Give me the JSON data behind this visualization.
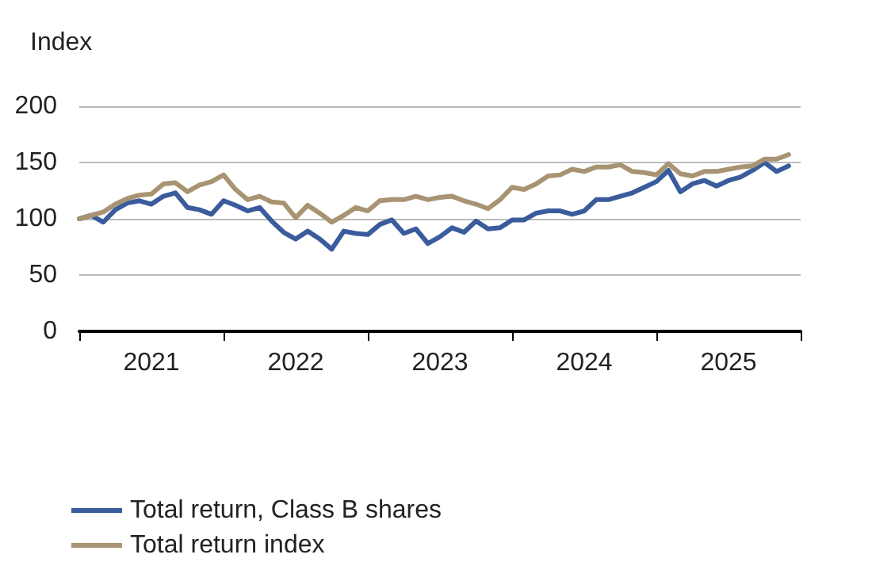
{
  "chart_data": {
    "type": "line",
    "ylabel": "Index",
    "x": [
      2021,
      2021.0833,
      2021.1667,
      2021.25,
      2021.3333,
      2021.4167,
      2021.5,
      2021.5833,
      2021.6667,
      2021.75,
      2021.8333,
      2021.9167,
      2022,
      2022.0833,
      2022.1667,
      2022.25,
      2022.3333,
      2022.4167,
      2022.5,
      2022.5833,
      2022.6667,
      2022.75,
      2022.8333,
      2022.9167,
      2023,
      2023.0833,
      2023.1667,
      2023.25,
      2023.3333,
      2023.4167,
      2023.5,
      2023.5833,
      2023.6667,
      2023.75,
      2023.8333,
      2023.9167,
      2024,
      2024.0833,
      2024.1667,
      2024.25,
      2024.3333,
      2024.4167,
      2024.5,
      2024.5833,
      2024.6667,
      2024.75,
      2024.8333,
      2024.9167,
      2025,
      2025.0833,
      2025.1667,
      2025.25,
      2025.3333,
      2025.4167,
      2025.5,
      2025.5833,
      2025.6667,
      2025.75,
      2025.8333,
      2025.9167
    ],
    "series": [
      {
        "name": "Total return, Class B shares",
        "color": "#3a5c9c",
        "values": [
          100,
          103,
          97,
          108,
          114,
          116,
          113,
          120,
          123,
          110,
          108,
          104,
          116,
          112,
          107,
          110,
          98,
          88,
          82,
          89,
          82,
          73,
          89,
          87,
          86,
          95,
          99,
          87,
          91,
          78,
          84,
          92,
          88,
          98,
          91,
          92,
          99,
          99,
          105,
          107,
          107,
          104,
          107,
          117,
          117,
          120,
          123,
          128,
          133,
          143,
          124,
          131,
          134,
          129,
          134,
          137,
          143,
          150,
          142,
          147
        ]
      },
      {
        "name": "Total return index",
        "color": "#a89472",
        "values": [
          100,
          103,
          106,
          113,
          118,
          121,
          122,
          131,
          132,
          124,
          130,
          133,
          139,
          126,
          117,
          120,
          115,
          114,
          101,
          112,
          105,
          97,
          103,
          110,
          107,
          116,
          117,
          117,
          120,
          117,
          119,
          120,
          116,
          113,
          109,
          117,
          128,
          126,
          131,
          138,
          139,
          144,
          142,
          146,
          146,
          148,
          142,
          141,
          139,
          149,
          140,
          138,
          142,
          142,
          144,
          146,
          147,
          153,
          153,
          157
        ]
      }
    ],
    "xlim": [
      2021,
      2026
    ],
    "xticks": [
      {
        "value": 2021,
        "label": null
      },
      {
        "value": 2021.5,
        "label": "2021"
      },
      {
        "value": 2022,
        "label": null
      },
      {
        "value": 2022.5,
        "label": "2022"
      },
      {
        "value": 2023,
        "label": null
      },
      {
        "value": 2023.5,
        "label": "2023"
      },
      {
        "value": 2024,
        "label": null
      },
      {
        "value": 2024.5,
        "label": "2024"
      },
      {
        "value": 2025,
        "label": null
      },
      {
        "value": 2025.5,
        "label": "2025"
      },
      {
        "value": 2026,
        "label": null
      }
    ],
    "ylim": [
      0,
      200
    ],
    "yticks": [
      0,
      50,
      100,
      150,
      200
    ],
    "grid": "y",
    "legend": "bottom",
    "marker": "none",
    "line_style": "solid"
  }
}
